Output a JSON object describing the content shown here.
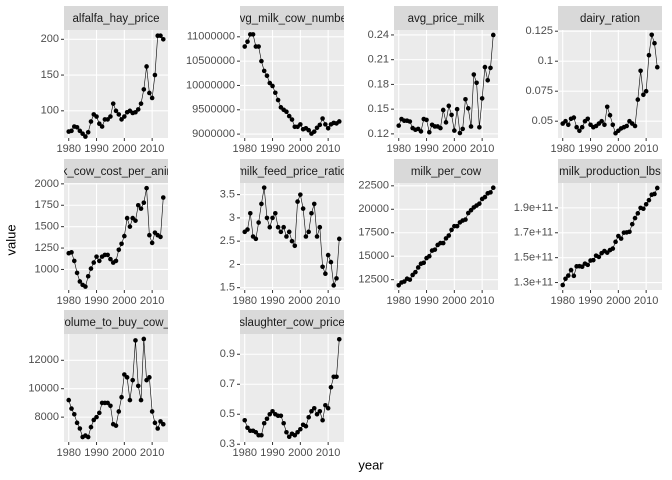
{
  "x_label": "year",
  "y_label": "value",
  "chart_data": [
    {
      "type": "line",
      "title": "alfalfa_hay_price",
      "x": [
        1980,
        1981,
        1982,
        1983,
        1984,
        1985,
        1986,
        1987,
        1988,
        1989,
        1990,
        1991,
        1992,
        1993,
        1994,
        1995,
        1996,
        1997,
        1998,
        1999,
        2000,
        2001,
        2002,
        2003,
        2004,
        2005,
        2006,
        2007,
        2008,
        2009,
        2010,
        2011,
        2012,
        2013,
        2014
      ],
      "values": [
        71,
        72,
        78,
        77,
        72,
        68,
        64,
        70,
        85,
        95,
        92,
        82,
        78,
        88,
        88,
        92,
        110,
        100,
        95,
        88,
        92,
        98,
        100,
        97,
        98,
        102,
        110,
        130,
        162,
        125,
        118,
        150,
        205,
        205,
        200
      ],
      "xlim": [
        1978.3,
        2015.7
      ],
      "xticks": [
        1980,
        1990,
        2000,
        2010
      ],
      "ylim": [
        62,
        213
      ],
      "yticks": [
        100,
        150,
        200
      ]
    },
    {
      "type": "line",
      "title": "avg_milk_cow_number",
      "x": [
        1980,
        1981,
        1982,
        1983,
        1984,
        1985,
        1986,
        1987,
        1988,
        1989,
        1990,
        1991,
        1992,
        1993,
        1994,
        1995,
        1996,
        1997,
        1998,
        1999,
        2000,
        2001,
        2002,
        2003,
        2004,
        2005,
        2006,
        2007,
        2008,
        2009,
        2010,
        2011,
        2012,
        2013,
        2014
      ],
      "values": [
        10800000,
        10900000,
        11050000,
        11050000,
        10800000,
        10800000,
        10500000,
        10300000,
        10200000,
        10050000,
        9990000,
        9850000,
        9700000,
        9550000,
        9500000,
        9460000,
        9370000,
        9300000,
        9150000,
        9150000,
        9200000,
        9100000,
        9120000,
        9080000,
        9010000,
        9050000,
        9130000,
        9190000,
        9320000,
        9200000,
        9120000,
        9200000,
        9230000,
        9220000,
        9260000
      ],
      "xlim": [
        1978.3,
        2015.7
      ],
      "xticks": [
        1980,
        1990,
        2000,
        2010
      ],
      "ylim": [
        8920000,
        11140000
      ],
      "yticks": [
        9000000,
        9500000,
        10000000,
        10500000,
        11000000
      ]
    },
    {
      "type": "line",
      "title": "avg_price_milk",
      "x": [
        1980,
        1981,
        1982,
        1983,
        1984,
        1985,
        1986,
        1987,
        1988,
        1989,
        1990,
        1991,
        1992,
        1993,
        1994,
        1995,
        1996,
        1997,
        1998,
        1999,
        2000,
        2001,
        2002,
        2003,
        2004,
        2005,
        2006,
        2007,
        2008,
        2009,
        2010,
        2011,
        2012,
        2013,
        2014
      ],
      "values": [
        0.13,
        0.138,
        0.136,
        0.136,
        0.135,
        0.127,
        0.125,
        0.126,
        0.123,
        0.138,
        0.137,
        0.122,
        0.131,
        0.129,
        0.129,
        0.127,
        0.149,
        0.134,
        0.154,
        0.143,
        0.124,
        0.15,
        0.121,
        0.126,
        0.162,
        0.151,
        0.129,
        0.192,
        0.182,
        0.128,
        0.163,
        0.201,
        0.185,
        0.2,
        0.24
      ],
      "xlim": [
        1978.3,
        2015.7
      ],
      "xticks": [
        1980,
        1990,
        2000,
        2010
      ],
      "ylim": [
        0.115,
        0.246
      ],
      "yticks": [
        0.12,
        0.15,
        0.18,
        0.21,
        0.24
      ]
    },
    {
      "type": "line",
      "title": "dairy_ration",
      "x": [
        1980,
        1981,
        1982,
        1983,
        1984,
        1985,
        1986,
        1987,
        1988,
        1989,
        1990,
        1991,
        1992,
        1993,
        1994,
        1995,
        1996,
        1997,
        1998,
        1999,
        2000,
        2001,
        2002,
        2003,
        2004,
        2005,
        2006,
        2007,
        2008,
        2009,
        2010,
        2011,
        2012,
        2013,
        2014
      ],
      "values": [
        0.048,
        0.05,
        0.047,
        0.052,
        0.053,
        0.045,
        0.042,
        0.045,
        0.05,
        0.052,
        0.047,
        0.045,
        0.046,
        0.048,
        0.05,
        0.047,
        0.062,
        0.055,
        0.047,
        0.04,
        0.042,
        0.044,
        0.045,
        0.046,
        0.05,
        0.048,
        0.046,
        0.068,
        0.092,
        0.072,
        0.075,
        0.105,
        0.122,
        0.115,
        0.095
      ],
      "xlim": [
        1978.3,
        2015.7
      ],
      "xticks": [
        1980,
        1990,
        2000,
        2010
      ],
      "ylim": [
        0.036,
        0.126
      ],
      "yticks": [
        0.05,
        0.075,
        0.1,
        0.125
      ]
    },
    {
      "type": "line",
      "title": "milk_cow_cost_per_animal",
      "x": [
        1980,
        1981,
        1982,
        1983,
        1984,
        1985,
        1986,
        1987,
        1988,
        1989,
        1990,
        1991,
        1992,
        1993,
        1994,
        1995,
        1996,
        1997,
        1998,
        1999,
        2000,
        2001,
        2002,
        2003,
        2004,
        2005,
        2006,
        2007,
        2008,
        2009,
        2010,
        2011,
        2012,
        2013,
        2014
      ],
      "values": [
        1190,
        1200,
        1100,
        960,
        860,
        820,
        800,
        920,
        1010,
        1080,
        1150,
        1100,
        1150,
        1170,
        1170,
        1120,
        1080,
        1100,
        1230,
        1300,
        1390,
        1600,
        1500,
        1600,
        1570,
        1750,
        1710,
        1780,
        1950,
        1400,
        1310,
        1430,
        1400,
        1380,
        1840
      ],
      "xlim": [
        1978.3,
        2015.7
      ],
      "xticks": [
        1980,
        1990,
        2000,
        2010
      ],
      "ylim": [
        760,
        2010
      ],
      "yticks": [
        1000,
        1250,
        1500,
        1750,
        2000
      ]
    },
    {
      "type": "line",
      "title": "milk_feed_price_ratio",
      "x": [
        1980,
        1981,
        1982,
        1983,
        1984,
        1985,
        1986,
        1987,
        1988,
        1989,
        1990,
        1991,
        1992,
        1993,
        1994,
        1995,
        1996,
        1997,
        1998,
        1999,
        2000,
        2001,
        2002,
        2003,
        2004,
        2005,
        2006,
        2007,
        2008,
        2009,
        2010,
        2011,
        2012,
        2013,
        2014
      ],
      "values": [
        2.7,
        2.75,
        3.1,
        2.6,
        2.55,
        2.9,
        3.3,
        3.65,
        3.0,
        2.8,
        3.0,
        3.1,
        2.8,
        2.7,
        2.8,
        2.6,
        2.7,
        2.5,
        2.4,
        3.35,
        3.5,
        3.2,
        2.6,
        2.7,
        3.1,
        3.3,
        2.6,
        2.8,
        1.95,
        1.8,
        2.2,
        2.05,
        1.55,
        1.7,
        2.55
      ],
      "xlim": [
        1978.3,
        2015.7
      ],
      "xticks": [
        1980,
        1990,
        2000,
        2010
      ],
      "ylim": [
        1.45,
        3.75
      ],
      "yticks": [
        1.5,
        2.0,
        2.5,
        3.0,
        3.5
      ]
    },
    {
      "type": "line",
      "title": "milk_per_cow",
      "x": [
        1980,
        1981,
        1982,
        1983,
        1984,
        1985,
        1986,
        1987,
        1988,
        1989,
        1990,
        1991,
        1992,
        1993,
        1994,
        1995,
        1996,
        1997,
        1998,
        1999,
        2000,
        2001,
        2002,
        2003,
        2004,
        2005,
        2006,
        2007,
        2008,
        2009,
        2010,
        2011,
        2012,
        2013,
        2014
      ],
      "values": [
        11900,
        12200,
        12300,
        12600,
        12500,
        13000,
        13300,
        13800,
        14200,
        14300,
        14800,
        15000,
        15600,
        15700,
        16200,
        16400,
        16400,
        16900,
        17200,
        17800,
        18200,
        18200,
        18600,
        18800,
        18900,
        19600,
        19900,
        20200,
        20400,
        20600,
        21100,
        21300,
        21700,
        21800,
        22300
      ],
      "xlim": [
        1978.3,
        2015.7
      ],
      "xticks": [
        1980,
        1990,
        2000,
        2010
      ],
      "ylim": [
        11400,
        22800
      ],
      "yticks": [
        12500,
        15000,
        17500,
        20000,
        22500
      ]
    },
    {
      "type": "line",
      "title": "milk_production_lbs",
      "x": [
        1980,
        1981,
        1982,
        1983,
        1984,
        1985,
        1986,
        1987,
        1988,
        1989,
        1990,
        1991,
        1992,
        1993,
        1994,
        1995,
        1996,
        1997,
        1998,
        1999,
        2000,
        2001,
        2002,
        2003,
        2004,
        2005,
        2006,
        2007,
        2008,
        2009,
        2010,
        2011,
        2012,
        2013,
        2014
      ],
      "values": [
        128000000000,
        133000000000,
        135600000000,
        140000000000,
        135400000000,
        143000000000,
        143100000000,
        142700000000,
        145200000000,
        144200000000,
        147700000000,
        148000000000,
        151600000000,
        150600000000,
        153600000000,
        155300000000,
        154000000000,
        156100000000,
        157300000000,
        162700000000,
        167400000000,
        165300000000,
        170100000000,
        170300000000,
        170800000000,
        176900000000,
        181800000000,
        185600000000,
        190000000000,
        189300000000,
        192900000000,
        196200000000,
        200600000000,
        201200000000,
        206000000000
      ],
      "xlim": [
        1978.3,
        2015.7
      ],
      "xticks": [
        1980,
        1990,
        2000,
        2010
      ],
      "ylim": [
        124000000000,
        210000000000
      ],
      "yticks": [
        {
          "value": 130000000000,
          "label": "1.3e+11"
        },
        {
          "value": 150000000000,
          "label": "1.5e+11"
        },
        {
          "value": 170000000000,
          "label": "1.7e+11"
        },
        {
          "value": 190000000000,
          "label": "1.9e+11"
        }
      ]
    },
    {
      "type": "line",
      "title": "milk_volume_to_buy_cow_in_lbs",
      "x": [
        1980,
        1981,
        1982,
        1983,
        1984,
        1985,
        1986,
        1987,
        1988,
        1989,
        1990,
        1991,
        1992,
        1993,
        1994,
        1995,
        1996,
        1997,
        1998,
        1999,
        2000,
        2001,
        2002,
        2003,
        2004,
        2005,
        2006,
        2007,
        2008,
        2009,
        2010,
        2011,
        2012,
        2013,
        2014
      ],
      "values": [
        9200,
        8600,
        8200,
        7600,
        7200,
        6600,
        6700,
        6600,
        7300,
        7800,
        8000,
        8300,
        9000,
        9000,
        9000,
        8800,
        7500,
        7400,
        8400,
        9400,
        11000,
        10800,
        9200,
        10600,
        13400,
        10200,
        9200,
        13500,
        10600,
        10800,
        8400,
        7600,
        7200,
        7700,
        7500
      ],
      "xlim": [
        1978.3,
        2015.7
      ],
      "xticks": [
        1980,
        1990,
        2000,
        2010
      ],
      "ylim": [
        6250,
        13850
      ],
      "yticks": [
        8000,
        10000,
        12000
      ]
    },
    {
      "type": "line",
      "title": "slaughter_cow_price",
      "x": [
        1980,
        1981,
        1982,
        1983,
        1984,
        1985,
        1986,
        1987,
        1988,
        1989,
        1990,
        1991,
        1992,
        1993,
        1994,
        1995,
        1996,
        1997,
        1998,
        1999,
        2000,
        2001,
        2002,
        2003,
        2004,
        2005,
        2006,
        2007,
        2008,
        2009,
        2010,
        2011,
        2012,
        2013,
        2014
      ],
      "values": [
        0.46,
        0.41,
        0.39,
        0.39,
        0.38,
        0.36,
        0.36,
        0.44,
        0.47,
        0.5,
        0.52,
        0.5,
        0.49,
        0.49,
        0.44,
        0.38,
        0.35,
        0.37,
        0.36,
        0.38,
        0.4,
        0.43,
        0.42,
        0.48,
        0.52,
        0.54,
        0.5,
        0.52,
        0.46,
        0.56,
        0.54,
        0.68,
        0.75,
        0.75,
        1.0
      ],
      "xlim": [
        1978.3,
        2015.7
      ],
      "xticks": [
        1980,
        1990,
        2000,
        2010
      ],
      "ylim": [
        0.315,
        1.035
      ],
      "yticks": [
        0.3,
        0.5,
        0.7,
        0.9
      ]
    }
  ]
}
